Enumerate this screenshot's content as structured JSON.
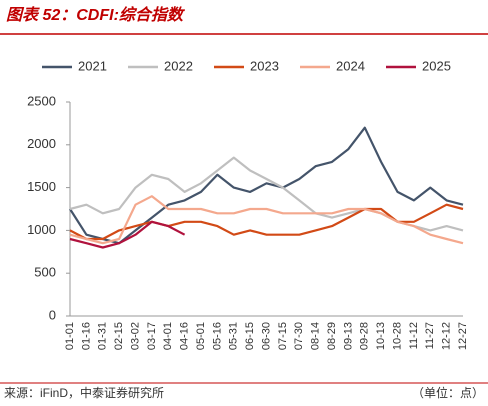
{
  "chart_data": {
    "type": "line",
    "title": "图表 52：CDFI:综合指数",
    "categories": [
      "01-01",
      "01-16",
      "01-31",
      "02-15",
      "03-02",
      "03-17",
      "04-01",
      "04-16",
      "05-01",
      "05-16",
      "05-31",
      "06-15",
      "06-30",
      "07-15",
      "07-30",
      "08-14",
      "08-29",
      "09-13",
      "09-28",
      "10-13",
      "10-28",
      "11-12",
      "11-27",
      "12-12",
      "12-27"
    ],
    "series": [
      {
        "name": "2021",
        "color": "#44546a",
        "values": [
          1250,
          950,
          900,
          850,
          1000,
          1150,
          1300,
          1350,
          1450,
          1650,
          1500,
          1450,
          1550,
          1500,
          1600,
          1750,
          1800,
          1950,
          2200,
          1800,
          1450,
          1350,
          1500,
          1350,
          1300
        ]
      },
      {
        "name": "2022",
        "color": "#bfbfbf",
        "values": [
          1250,
          1300,
          1200,
          1250,
          1500,
          1650,
          1600,
          1450,
          1550,
          1700,
          1850,
          1700,
          1600,
          1500,
          1350,
          1200,
          1150,
          1200,
          1250,
          1200,
          1100,
          1050,
          1000,
          1050,
          1000
        ]
      },
      {
        "name": "2023",
        "color": "#d24a16",
        "values": [
          1000,
          900,
          900,
          1000,
          1050,
          1100,
          1050,
          1100,
          1100,
          1050,
          950,
          1000,
          950,
          950,
          950,
          1000,
          1050,
          1150,
          1250,
          1250,
          1100,
          1100,
          1200,
          1300,
          1250
        ]
      },
      {
        "name": "2024",
        "color": "#f4a88d",
        "values": [
          950,
          900,
          850,
          900,
          1300,
          1400,
          1250,
          1250,
          1250,
          1200,
          1200,
          1250,
          1250,
          1200,
          1200,
          1200,
          1200,
          1250,
          1250,
          1200,
          1100,
          1050,
          950,
          900,
          850
        ]
      },
      {
        "name": "2025",
        "color": "#b0123d",
        "values": [
          900,
          850,
          800,
          850,
          950,
          1100,
          1050,
          950,
          null,
          null,
          null,
          null,
          null,
          null,
          null,
          null,
          null,
          null,
          null,
          null,
          null,
          null,
          null,
          null,
          null
        ]
      }
    ],
    "ylim": [
      0,
      2500
    ],
    "yticks": [
      0,
      500,
      1000,
      1500,
      2000,
      2500
    ],
    "source": "来源：iFinD，中泰证券研究所",
    "unit": "（单位：点）"
  }
}
